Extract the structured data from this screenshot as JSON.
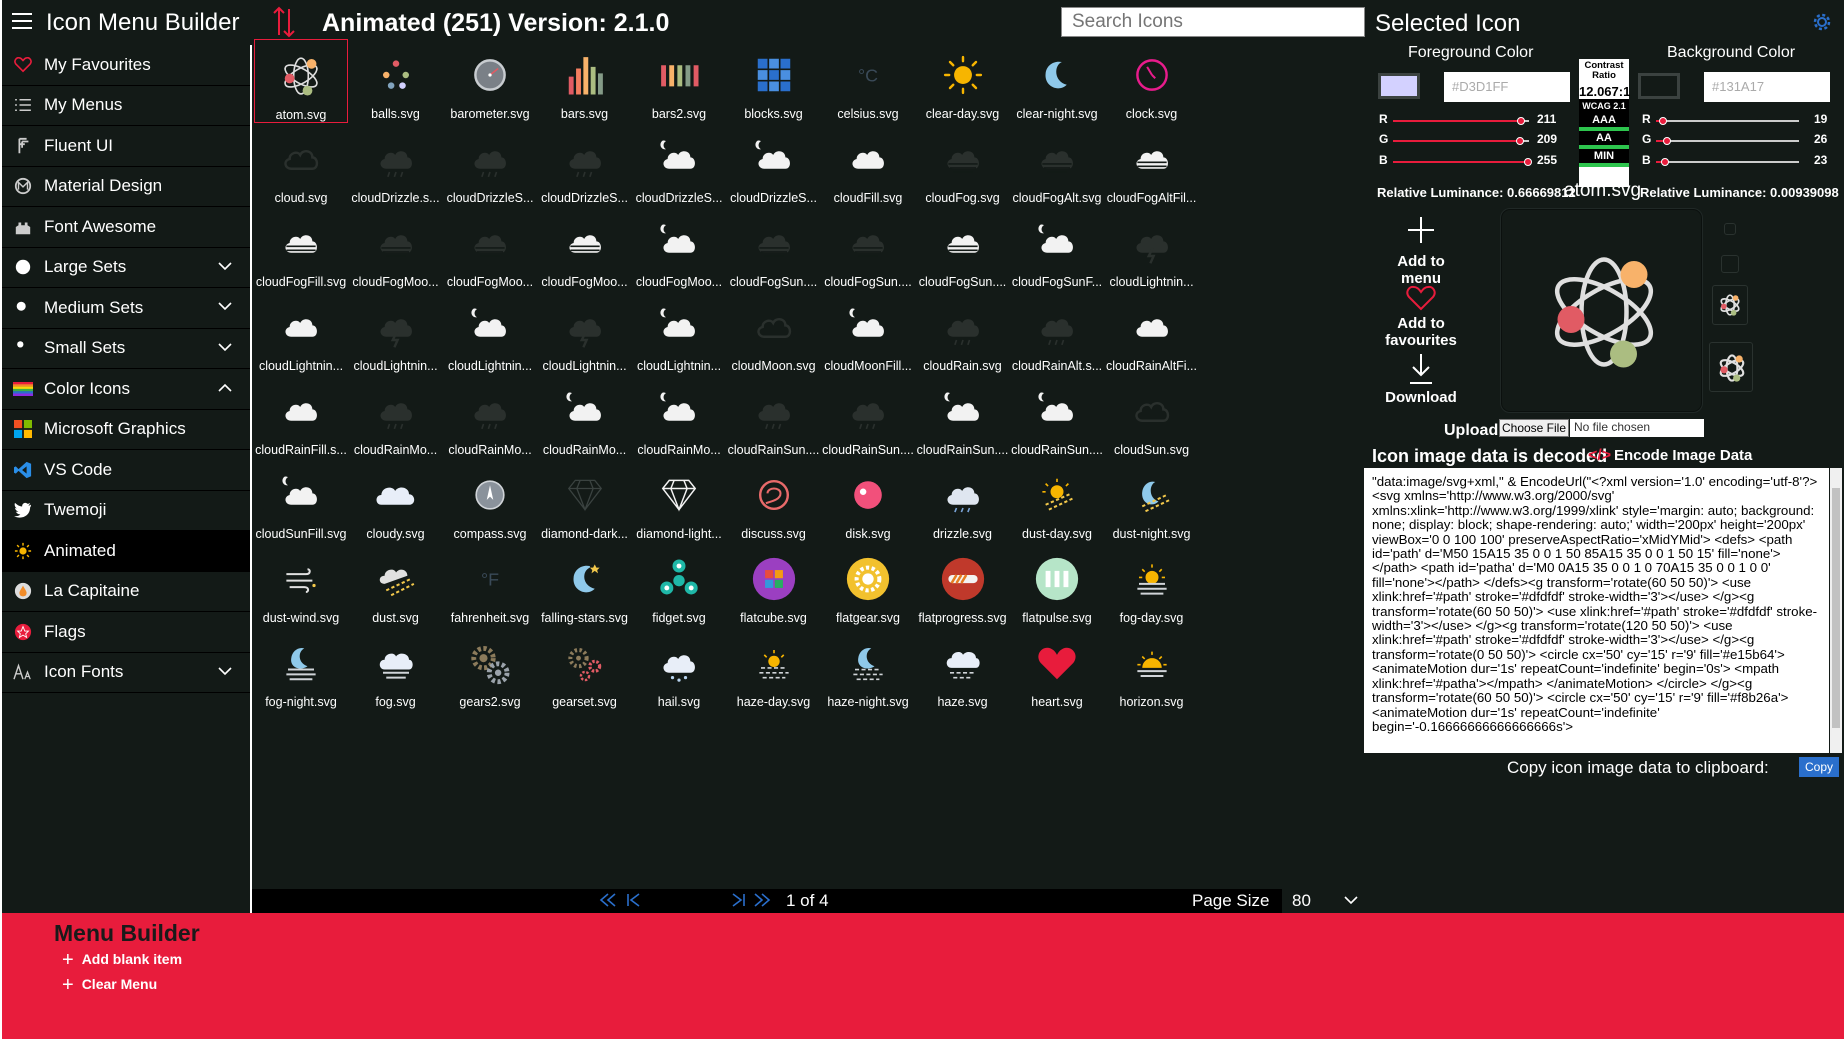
{
  "header": {
    "app_title": "Icon Menu Builder",
    "page_title": "Animated (251) Version: 2.1.0",
    "search_placeholder": "Search Icons",
    "selected_title": "Selected Icon"
  },
  "sidebar": {
    "items": [
      {
        "label": "My Favourites",
        "icon": "heart-icon",
        "color": "#e81c3c"
      },
      {
        "label": "My Menus",
        "icon": "list-icon"
      },
      {
        "label": "Fluent UI",
        "icon": "fluent-icon"
      },
      {
        "label": "Material Design",
        "icon": "material-icon"
      },
      {
        "label": "Font Awesome",
        "icon": "font-awesome-icon"
      },
      {
        "label": "Large Sets",
        "icon": "large-dot-icon",
        "expand": "down"
      },
      {
        "label": "Medium Sets",
        "icon": "medium-dot-icon",
        "expand": "down"
      },
      {
        "label": "Small Sets",
        "icon": "small-dot-icon",
        "expand": "down"
      },
      {
        "label": "Color Icons",
        "icon": "rainbow-icon",
        "expand": "up"
      },
      {
        "label": "Microsoft Graphics",
        "icon": "microsoft-logo-icon"
      },
      {
        "label": "VS Code",
        "icon": "vscode-icon"
      },
      {
        "label": "Twemoji",
        "icon": "twitter-bird-icon"
      },
      {
        "label": "Animated",
        "icon": "sun-icon",
        "active": true
      },
      {
        "label": "La Capitaine",
        "icon": "drop-icon"
      },
      {
        "label": "Flags",
        "icon": "flag-icon"
      },
      {
        "label": "Icon Fonts",
        "icon": "font-size-icon",
        "expand": "down"
      }
    ]
  },
  "grid": {
    "icons": [
      {
        "label": "atom.svg",
        "type": "atom",
        "selected": true
      },
      {
        "label": "balls.svg",
        "type": "balls"
      },
      {
        "label": "barometer.svg",
        "type": "barometer"
      },
      {
        "label": "bars.svg",
        "type": "bars"
      },
      {
        "label": "bars2.svg",
        "type": "bars2"
      },
      {
        "label": "blocks.svg",
        "type": "blocks"
      },
      {
        "label": "celsius.svg",
        "type": "celsius"
      },
      {
        "label": "clear-day.svg",
        "type": "sun"
      },
      {
        "label": "clear-night.svg",
        "type": "moon"
      },
      {
        "label": "clock.svg",
        "type": "clock"
      },
      {
        "label": "cloud.svg",
        "type": "cloud-outline"
      },
      {
        "label": "cloudDrizzle.s...",
        "type": "cloud-drizzle-dark"
      },
      {
        "label": "cloudDrizzleS...",
        "type": "cloud-drizzle-dark"
      },
      {
        "label": "cloudDrizzleS...",
        "type": "cloud-drizzle-dark"
      },
      {
        "label": "cloudDrizzleS...",
        "type": "cloud-white-moon"
      },
      {
        "label": "cloudDrizzleS...",
        "type": "cloud-white-moon"
      },
      {
        "label": "cloudFill.svg",
        "type": "cloud-white"
      },
      {
        "label": "cloudFog.svg",
        "type": "cloud-fog-dark"
      },
      {
        "label": "cloudFogAlt.svg",
        "type": "cloud-fog-dark"
      },
      {
        "label": "cloudFogAltFil...",
        "type": "cloud-fog-white"
      },
      {
        "label": "cloudFogFill.svg",
        "type": "cloud-fog-white"
      },
      {
        "label": "cloudFogMoo...",
        "type": "cloud-fog-dark"
      },
      {
        "label": "cloudFogMoo...",
        "type": "cloud-fog-dark"
      },
      {
        "label": "cloudFogMoo...",
        "type": "cloud-fog-white"
      },
      {
        "label": "cloudFogMoo...",
        "type": "cloud-white-moon"
      },
      {
        "label": "cloudFogSun....",
        "type": "cloud-fog-dark"
      },
      {
        "label": "cloudFogSun....",
        "type": "cloud-fog-dark"
      },
      {
        "label": "cloudFogSun....",
        "type": "cloud-fog-white"
      },
      {
        "label": "cloudFogSunF...",
        "type": "cloud-white-moon"
      },
      {
        "label": "cloudLightnin...",
        "type": "cloud-lightning-dark"
      },
      {
        "label": "cloudLightnin...",
        "type": "cloud-white"
      },
      {
        "label": "cloudLightnin...",
        "type": "cloud-lightning-dark"
      },
      {
        "label": "cloudLightnin...",
        "type": "cloud-white-moon"
      },
      {
        "label": "cloudLightnin...",
        "type": "cloud-lightning-dark"
      },
      {
        "label": "cloudLightnin...",
        "type": "cloud-white-moon"
      },
      {
        "label": "cloudMoon.svg",
        "type": "cloud-outline"
      },
      {
        "label": "cloudMoonFill...",
        "type": "cloud-white-moon"
      },
      {
        "label": "cloudRain.svg",
        "type": "cloud-drizzle-dark"
      },
      {
        "label": "cloudRainAlt.s...",
        "type": "cloud-drizzle-dark"
      },
      {
        "label": "cloudRainAltFi...",
        "type": "cloud-white"
      },
      {
        "label": "cloudRainFill.s...",
        "type": "cloud-white"
      },
      {
        "label": "cloudRainMo...",
        "type": "cloud-drizzle-dark"
      },
      {
        "label": "cloudRainMo...",
        "type": "cloud-drizzle-dark"
      },
      {
        "label": "cloudRainMo...",
        "type": "cloud-white-moon"
      },
      {
        "label": "cloudRainMo...",
        "type": "cloud-white-moon"
      },
      {
        "label": "cloudRainSun....",
        "type": "cloud-drizzle-dark"
      },
      {
        "label": "cloudRainSun....",
        "type": "cloud-drizzle-dark"
      },
      {
        "label": "cloudRainSun....",
        "type": "cloud-white-moon"
      },
      {
        "label": "cloudRainSun....",
        "type": "cloud-white-moon"
      },
      {
        "label": "cloudSun.svg",
        "type": "cloud-outline"
      },
      {
        "label": "cloudSunFill.svg",
        "type": "cloud-white-moon"
      },
      {
        "label": "cloudy.svg",
        "type": "cloudy"
      },
      {
        "label": "compass.svg",
        "type": "compass"
      },
      {
        "label": "diamond-dark...",
        "type": "diamond-dark"
      },
      {
        "label": "diamond-light...",
        "type": "diamond-light"
      },
      {
        "label": "discuss.svg",
        "type": "discuss"
      },
      {
        "label": "disk.svg",
        "type": "disk"
      },
      {
        "label": "drizzle.svg",
        "type": "drizzle"
      },
      {
        "label": "dust-day.svg",
        "type": "dust-day"
      },
      {
        "label": "dust-night.svg",
        "type": "dust-night"
      },
      {
        "label": "dust-wind.svg",
        "type": "dust-wind"
      },
      {
        "label": "dust.svg",
        "type": "dust"
      },
      {
        "label": "fahrenheit.svg",
        "type": "fahrenheit"
      },
      {
        "label": "falling-stars.svg",
        "type": "falling-stars"
      },
      {
        "label": "fidget.svg",
        "type": "fidget"
      },
      {
        "label": "flatcube.svg",
        "type": "flatcube"
      },
      {
        "label": "flatgear.svg",
        "type": "flatgear"
      },
      {
        "label": "flatprogress.svg",
        "type": "flatprogress"
      },
      {
        "label": "flatpulse.svg",
        "type": "flatpulse"
      },
      {
        "label": "fog-day.svg",
        "type": "fog-day"
      },
      {
        "label": "fog-night.svg",
        "type": "fog-night"
      },
      {
        "label": "fog.svg",
        "type": "fog"
      },
      {
        "label": "gears2.svg",
        "type": "gears2"
      },
      {
        "label": "gearset.svg",
        "type": "gearset"
      },
      {
        "label": "hail.svg",
        "type": "hail"
      },
      {
        "label": "haze-day.svg",
        "type": "haze-day"
      },
      {
        "label": "haze-night.svg",
        "type": "haze-night"
      },
      {
        "label": "haze.svg",
        "type": "haze"
      },
      {
        "label": "heart.svg",
        "type": "heart"
      },
      {
        "label": "horizon.svg",
        "type": "horizon"
      }
    ]
  },
  "pager": {
    "text": "1 of 4",
    "page_size_label": "Page Size",
    "page_size_value": "80"
  },
  "selected": {
    "fg_label": "Foreground Color",
    "bg_label": "Background Color",
    "fg_hex": "#D3D1FF",
    "bg_hex": "#131A17",
    "fg_rgb": {
      "r": "211",
      "g": "209",
      "b": "255"
    },
    "bg_rgb": {
      "r": "19",
      "g": "26",
      "b": "23"
    },
    "channel_labels": {
      "r": "R",
      "g": "G",
      "b": "B"
    },
    "fg_luminance": "Relative Luminance: 0.66669812",
    "bg_luminance": "Relative Luminance: 0.00939098",
    "contrast_heading": "Contrast Ratio",
    "contrast_value": "12.067:1",
    "wcag": "WCAG 2.1",
    "badges": [
      "AAA",
      "AA",
      "MIN"
    ],
    "icon_name": "atom.svg",
    "add_to_menu": "Add to menu",
    "add_to_favourites": "Add to favourites",
    "download": "Download",
    "upload_label": "Upload:",
    "choose_file": "Choose File",
    "no_file": "No file chosen",
    "decoded_title": "Icon image data is decoded",
    "encode_label": "Encode Image Data",
    "image_data": "\"data:image/svg+xml,\" & EncodeUrl(\"<?xml version='1.0' encoding='utf-8'?> <svg xmlns='http://www.w3.org/2000/svg' xmlns:xlink='http://www.w3.org/1999/xlink' style='margin: auto; background: none; display: block; shape-rendering: auto;' width='200px' height='200px' viewBox='0 0 100 100' preserveAspectRatio='xMidYMid'> <defs>   <path id='path' d='M50 15A15 35 0 0 1 50 85A15 35 0 0 1 50 15' fill='none'></path>   <path id='patha' d='M0 0A15 35 0 0 1 0 70A15 35 0 0 1 0 0' fill='none'></path> </defs><g transform='rotate(60 50 50)'> <use xlink:href='#path' stroke='#dfdfdf' stroke-width='3'></use> </g><g transform='rotate(60 50 50)'> <use xlink:href='#path' stroke='#dfdfdf' stroke-width='3'></use> </g><g transform='rotate(120 50 50)'> <use xlink:href='#path' stroke='#dfdfdf' stroke-width='3'></use> </g><g transform='rotate(0 50 50)'> <circle cx='50' cy='15' r='9' fill='#e15b64'>   <animateMotion dur='1s' repeatCount='indefinite' begin='0s'>     <mpath xlink:href='#patha'></mpath>   </animateMotion> </circle> </g><g transform='rotate(60 50 50)'> <circle cx='50' cy='15' r='9' fill='#f8b26a'>   <animateMotion dur='1s' repeatCount='indefinite' begin='-0.16666666666666666s'>",
    "copy_label": "Copy icon image data to clipboard:",
    "copy_button": "Copy"
  },
  "builder": {
    "title": "Menu Builder",
    "add_blank": "Add blank item",
    "clear": "Clear Menu"
  },
  "colors": {
    "panel": "#131a17",
    "accent": "#e81c3c",
    "atom_red": "#e15b64",
    "atom_orange": "#f8b26a",
    "atom_green": "#abbd81"
  }
}
